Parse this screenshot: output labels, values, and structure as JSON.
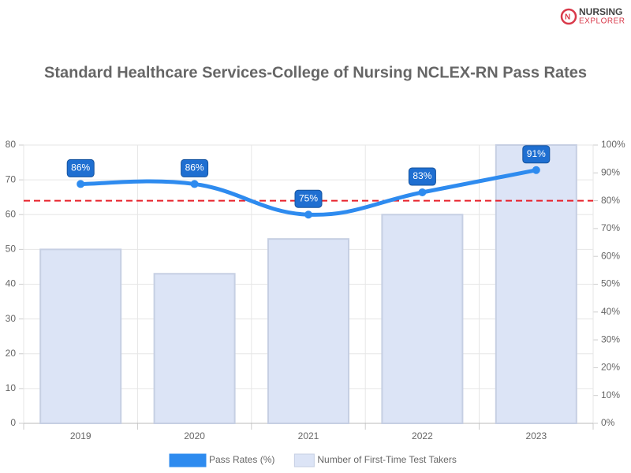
{
  "logo": [
    "NURSING",
    "EXPLORER"
  ],
  "chart_data": {
    "type": "combo",
    "title": "Standard Healthcare Services-College of Nursing NCLEX-RN Pass Rates",
    "categories": [
      "2019",
      "2020",
      "2021",
      "2022",
      "2023"
    ],
    "series": [
      {
        "name": "Pass Rates (%)",
        "type": "line",
        "axis": "y2",
        "color": "#2e8bef",
        "values": [
          86,
          86,
          75,
          83,
          91
        ],
        "value_labels": [
          "86%",
          "86%",
          "75%",
          "83%",
          "91%"
        ]
      },
      {
        "name": "Number of First-Time Test Takers",
        "type": "bar",
        "color": "#dce4f6",
        "values": [
          50,
          43,
          53,
          60,
          80
        ]
      }
    ],
    "ylim": [
      0,
      80
    ],
    "yticks": [
      0,
      10,
      20,
      30,
      40,
      50,
      60,
      70,
      80
    ],
    "y2lim": [
      0,
      100
    ],
    "y2ticks": [
      {
        "value": 0,
        "label": "0%"
      },
      {
        "value": 10,
        "label": "10%"
      },
      {
        "value": 20,
        "label": "20%"
      },
      {
        "value": 30,
        "label": "30%"
      },
      {
        "value": 40,
        "label": "40%"
      },
      {
        "value": 50,
        "label": "50%"
      },
      {
        "value": 60,
        "label": "60%"
      },
      {
        "value": 70,
        "label": "70%"
      },
      {
        "value": 80,
        "label": "80%"
      },
      {
        "value": 90,
        "label": "90%"
      },
      {
        "value": 100,
        "label": "100%"
      }
    ],
    "reference_line": {
      "value": 80,
      "axis": "y2",
      "color": "#e8202a"
    },
    "grid": true,
    "legend": "bottom"
  }
}
